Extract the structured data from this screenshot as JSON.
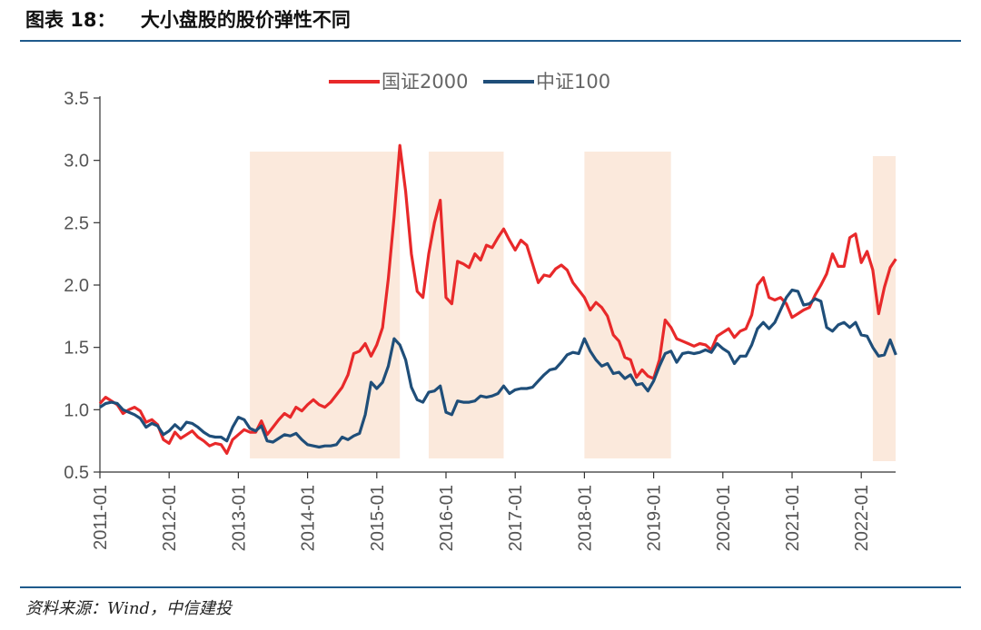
{
  "header": {
    "label": "图表 18：",
    "title": "大小盘股的股价弹性不同"
  },
  "footer": {
    "source": "资料来源：Wind，中信建投"
  },
  "chart_data": {
    "type": "line",
    "ylim": [
      0.5,
      3.5
    ],
    "yticks": [
      "0.5",
      "1.0",
      "1.5",
      "2.0",
      "2.5",
      "3.0",
      "3.5"
    ],
    "xticks": [
      "2011-01",
      "2012-01",
      "2013-01",
      "2014-01",
      "2015-01",
      "2016-01",
      "2017-01",
      "2018-01",
      "2019-01",
      "2020-01",
      "2021-01",
      "2022-01"
    ],
    "legend_position": "top-center",
    "grid": false,
    "shaded_periods": [
      [
        "2013-03",
        "2015-05"
      ],
      [
        "2015-10",
        "2016-11"
      ],
      [
        "2018-01",
        "2019-04"
      ],
      [
        "2022-03",
        "2022-07"
      ]
    ],
    "shade_color": "#fbe9dc",
    "series": [
      {
        "name": "国证2000",
        "color": "#e8292a",
        "points": [
          [
            "2011-01",
            1.05
          ],
          [
            "2011-02",
            1.1
          ],
          [
            "2011-03",
            1.07
          ],
          [
            "2011-04",
            1.04
          ],
          [
            "2011-05",
            0.97
          ],
          [
            "2011-06",
            1.0
          ],
          [
            "2011-07",
            1.02
          ],
          [
            "2011-08",
            0.99
          ],
          [
            "2011-09",
            0.9
          ],
          [
            "2011-10",
            0.92
          ],
          [
            "2011-11",
            0.88
          ],
          [
            "2011-12",
            0.76
          ],
          [
            "2012-01",
            0.73
          ],
          [
            "2012-02",
            0.82
          ],
          [
            "2012-03",
            0.77
          ],
          [
            "2012-04",
            0.8
          ],
          [
            "2012-05",
            0.83
          ],
          [
            "2012-06",
            0.78
          ],
          [
            "2012-07",
            0.75
          ],
          [
            "2012-08",
            0.71
          ],
          [
            "2012-09",
            0.73
          ],
          [
            "2012-10",
            0.72
          ],
          [
            "2012-11",
            0.65
          ],
          [
            "2012-12",
            0.76
          ],
          [
            "2013-01",
            0.8
          ],
          [
            "2013-02",
            0.84
          ],
          [
            "2013-03",
            0.82
          ],
          [
            "2013-04",
            0.82
          ],
          [
            "2013-05",
            0.91
          ],
          [
            "2013-06",
            0.8
          ],
          [
            "2013-07",
            0.86
          ],
          [
            "2013-08",
            0.92
          ],
          [
            "2013-09",
            0.97
          ],
          [
            "2013-10",
            0.94
          ],
          [
            "2013-11",
            1.02
          ],
          [
            "2013-12",
            0.99
          ],
          [
            "2014-01",
            1.04
          ],
          [
            "2014-02",
            1.08
          ],
          [
            "2014-03",
            1.04
          ],
          [
            "2014-04",
            1.02
          ],
          [
            "2014-05",
            1.06
          ],
          [
            "2014-06",
            1.12
          ],
          [
            "2014-07",
            1.18
          ],
          [
            "2014-08",
            1.28
          ],
          [
            "2014-09",
            1.45
          ],
          [
            "2014-10",
            1.47
          ],
          [
            "2014-11",
            1.53
          ],
          [
            "2014-12",
            1.43
          ],
          [
            "2015-01",
            1.52
          ],
          [
            "2015-02",
            1.66
          ],
          [
            "2015-03",
            2.05
          ],
          [
            "2015-04",
            2.55
          ],
          [
            "2015-05",
            3.12
          ],
          [
            "2015-06",
            2.75
          ],
          [
            "2015-07",
            2.25
          ],
          [
            "2015-08",
            1.95
          ],
          [
            "2015-09",
            1.9
          ],
          [
            "2015-10",
            2.25
          ],
          [
            "2015-11",
            2.5
          ],
          [
            "2015-12",
            2.68
          ],
          [
            "2016-01",
            1.9
          ],
          [
            "2016-02",
            1.85
          ],
          [
            "2016-03",
            2.19
          ],
          [
            "2016-04",
            2.17
          ],
          [
            "2016-05",
            2.14
          ],
          [
            "2016-06",
            2.25
          ],
          [
            "2016-07",
            2.2
          ],
          [
            "2016-08",
            2.32
          ],
          [
            "2016-09",
            2.3
          ],
          [
            "2016-10",
            2.38
          ],
          [
            "2016-11",
            2.45
          ],
          [
            "2016-12",
            2.36
          ],
          [
            "2017-01",
            2.28
          ],
          [
            "2017-02",
            2.36
          ],
          [
            "2017-03",
            2.32
          ],
          [
            "2017-04",
            2.17
          ],
          [
            "2017-05",
            2.02
          ],
          [
            "2017-06",
            2.08
          ],
          [
            "2017-07",
            2.07
          ],
          [
            "2017-08",
            2.13
          ],
          [
            "2017-09",
            2.16
          ],
          [
            "2017-10",
            2.12
          ],
          [
            "2017-11",
            2.02
          ],
          [
            "2017-12",
            1.96
          ],
          [
            "2018-01",
            1.9
          ],
          [
            "2018-02",
            1.8
          ],
          [
            "2018-03",
            1.86
          ],
          [
            "2018-04",
            1.82
          ],
          [
            "2018-05",
            1.75
          ],
          [
            "2018-06",
            1.6
          ],
          [
            "2018-07",
            1.55
          ],
          [
            "2018-08",
            1.42
          ],
          [
            "2018-09",
            1.4
          ],
          [
            "2018-10",
            1.26
          ],
          [
            "2018-11",
            1.32
          ],
          [
            "2018-12",
            1.27
          ],
          [
            "2019-01",
            1.25
          ],
          [
            "2019-02",
            1.4
          ],
          [
            "2019-03",
            1.72
          ],
          [
            "2019-04",
            1.66
          ],
          [
            "2019-05",
            1.57
          ],
          [
            "2019-06",
            1.55
          ],
          [
            "2019-07",
            1.53
          ],
          [
            "2019-08",
            1.51
          ],
          [
            "2019-09",
            1.53
          ],
          [
            "2019-10",
            1.52
          ],
          [
            "2019-11",
            1.48
          ],
          [
            "2019-12",
            1.59
          ],
          [
            "2020-01",
            1.62
          ],
          [
            "2020-02",
            1.65
          ],
          [
            "2020-03",
            1.58
          ],
          [
            "2020-04",
            1.63
          ],
          [
            "2020-05",
            1.65
          ],
          [
            "2020-06",
            1.76
          ],
          [
            "2020-07",
            2.0
          ],
          [
            "2020-08",
            2.06
          ],
          [
            "2020-09",
            1.9
          ],
          [
            "2020-10",
            1.88
          ],
          [
            "2020-11",
            1.9
          ],
          [
            "2020-12",
            1.85
          ],
          [
            "2021-01",
            1.74
          ],
          [
            "2021-02",
            1.77
          ],
          [
            "2021-03",
            1.8
          ],
          [
            "2021-04",
            1.82
          ],
          [
            "2021-05",
            1.92
          ],
          [
            "2021-06",
            2.0
          ],
          [
            "2021-07",
            2.09
          ],
          [
            "2021-08",
            2.25
          ],
          [
            "2021-09",
            2.15
          ],
          [
            "2021-10",
            2.15
          ],
          [
            "2021-11",
            2.38
          ],
          [
            "2021-12",
            2.41
          ],
          [
            "2022-01",
            2.18
          ],
          [
            "2022-02",
            2.27
          ],
          [
            "2022-03",
            2.12
          ],
          [
            "2022-04",
            1.77
          ],
          [
            "2022-05",
            1.98
          ],
          [
            "2022-06",
            2.14
          ],
          [
            "2022-07",
            2.21
          ]
        ]
      },
      {
        "name": "中证100",
        "color": "#1f4e79",
        "points": [
          [
            "2011-01",
            1.02
          ],
          [
            "2011-02",
            1.05
          ],
          [
            "2011-03",
            1.06
          ],
          [
            "2011-04",
            1.05
          ],
          [
            "2011-05",
            1.0
          ],
          [
            "2011-06",
            0.98
          ],
          [
            "2011-07",
            0.96
          ],
          [
            "2011-08",
            0.93
          ],
          [
            "2011-09",
            0.86
          ],
          [
            "2011-10",
            0.89
          ],
          [
            "2011-11",
            0.87
          ],
          [
            "2011-12",
            0.8
          ],
          [
            "2012-01",
            0.83
          ],
          [
            "2012-02",
            0.88
          ],
          [
            "2012-03",
            0.84
          ],
          [
            "2012-04",
            0.9
          ],
          [
            "2012-05",
            0.89
          ],
          [
            "2012-06",
            0.86
          ],
          [
            "2012-07",
            0.82
          ],
          [
            "2012-08",
            0.79
          ],
          [
            "2012-09",
            0.78
          ],
          [
            "2012-10",
            0.78
          ],
          [
            "2012-11",
            0.75
          ],
          [
            "2012-12",
            0.86
          ],
          [
            "2013-01",
            0.94
          ],
          [
            "2013-02",
            0.92
          ],
          [
            "2013-03",
            0.85
          ],
          [
            "2013-04",
            0.83
          ],
          [
            "2013-05",
            0.87
          ],
          [
            "2013-06",
            0.75
          ],
          [
            "2013-07",
            0.74
          ],
          [
            "2013-08",
            0.77
          ],
          [
            "2013-09",
            0.8
          ],
          [
            "2013-10",
            0.79
          ],
          [
            "2013-11",
            0.81
          ],
          [
            "2013-12",
            0.76
          ],
          [
            "2014-01",
            0.72
          ],
          [
            "2014-02",
            0.71
          ],
          [
            "2014-03",
            0.7
          ],
          [
            "2014-04",
            0.71
          ],
          [
            "2014-05",
            0.71
          ],
          [
            "2014-06",
            0.72
          ],
          [
            "2014-07",
            0.78
          ],
          [
            "2014-08",
            0.76
          ],
          [
            "2014-09",
            0.79
          ],
          [
            "2014-10",
            0.81
          ],
          [
            "2014-11",
            0.96
          ],
          [
            "2014-12",
            1.22
          ],
          [
            "2015-01",
            1.17
          ],
          [
            "2015-02",
            1.22
          ],
          [
            "2015-03",
            1.35
          ],
          [
            "2015-04",
            1.57
          ],
          [
            "2015-05",
            1.52
          ],
          [
            "2015-06",
            1.4
          ],
          [
            "2015-07",
            1.18
          ],
          [
            "2015-08",
            1.08
          ],
          [
            "2015-09",
            1.06
          ],
          [
            "2015-10",
            1.14
          ],
          [
            "2015-11",
            1.15
          ],
          [
            "2015-12",
            1.19
          ],
          [
            "2016-01",
            0.98
          ],
          [
            "2016-02",
            0.96
          ],
          [
            "2016-03",
            1.07
          ],
          [
            "2016-04",
            1.06
          ],
          [
            "2016-05",
            1.06
          ],
          [
            "2016-06",
            1.07
          ],
          [
            "2016-07",
            1.11
          ],
          [
            "2016-08",
            1.1
          ],
          [
            "2016-09",
            1.11
          ],
          [
            "2016-10",
            1.13
          ],
          [
            "2016-11",
            1.19
          ],
          [
            "2016-12",
            1.13
          ],
          [
            "2017-01",
            1.16
          ],
          [
            "2017-02",
            1.17
          ],
          [
            "2017-03",
            1.17
          ],
          [
            "2017-04",
            1.18
          ],
          [
            "2017-05",
            1.23
          ],
          [
            "2017-06",
            1.28
          ],
          [
            "2017-07",
            1.32
          ],
          [
            "2017-08",
            1.33
          ],
          [
            "2017-09",
            1.38
          ],
          [
            "2017-10",
            1.44
          ],
          [
            "2017-11",
            1.46
          ],
          [
            "2017-12",
            1.45
          ],
          [
            "2018-01",
            1.57
          ],
          [
            "2018-02",
            1.47
          ],
          [
            "2018-03",
            1.4
          ],
          [
            "2018-04",
            1.35
          ],
          [
            "2018-05",
            1.37
          ],
          [
            "2018-06",
            1.29
          ],
          [
            "2018-07",
            1.3
          ],
          [
            "2018-08",
            1.25
          ],
          [
            "2018-09",
            1.28
          ],
          [
            "2018-10",
            1.2
          ],
          [
            "2018-11",
            1.21
          ],
          [
            "2018-12",
            1.15
          ],
          [
            "2019-01",
            1.23
          ],
          [
            "2019-02",
            1.35
          ],
          [
            "2019-03",
            1.45
          ],
          [
            "2019-04",
            1.47
          ],
          [
            "2019-05",
            1.38
          ],
          [
            "2019-06",
            1.45
          ],
          [
            "2019-07",
            1.46
          ],
          [
            "2019-08",
            1.45
          ],
          [
            "2019-09",
            1.46
          ],
          [
            "2019-10",
            1.48
          ],
          [
            "2019-11",
            1.46
          ],
          [
            "2019-12",
            1.53
          ],
          [
            "2020-01",
            1.49
          ],
          [
            "2020-02",
            1.46
          ],
          [
            "2020-03",
            1.37
          ],
          [
            "2020-04",
            1.43
          ],
          [
            "2020-05",
            1.43
          ],
          [
            "2020-06",
            1.52
          ],
          [
            "2020-07",
            1.65
          ],
          [
            "2020-08",
            1.7
          ],
          [
            "2020-09",
            1.65
          ],
          [
            "2020-10",
            1.7
          ],
          [
            "2020-11",
            1.8
          ],
          [
            "2020-12",
            1.9
          ],
          [
            "2021-01",
            1.96
          ],
          [
            "2021-02",
            1.95
          ],
          [
            "2021-03",
            1.84
          ],
          [
            "2021-04",
            1.85
          ],
          [
            "2021-05",
            1.89
          ],
          [
            "2021-06",
            1.87
          ],
          [
            "2021-07",
            1.66
          ],
          [
            "2021-08",
            1.63
          ],
          [
            "2021-09",
            1.68
          ],
          [
            "2021-10",
            1.7
          ],
          [
            "2021-11",
            1.66
          ],
          [
            "2021-12",
            1.7
          ],
          [
            "2022-01",
            1.6
          ],
          [
            "2022-02",
            1.59
          ],
          [
            "2022-03",
            1.5
          ],
          [
            "2022-04",
            1.43
          ],
          [
            "2022-05",
            1.44
          ],
          [
            "2022-06",
            1.56
          ],
          [
            "2022-07",
            1.44
          ]
        ]
      }
    ]
  }
}
